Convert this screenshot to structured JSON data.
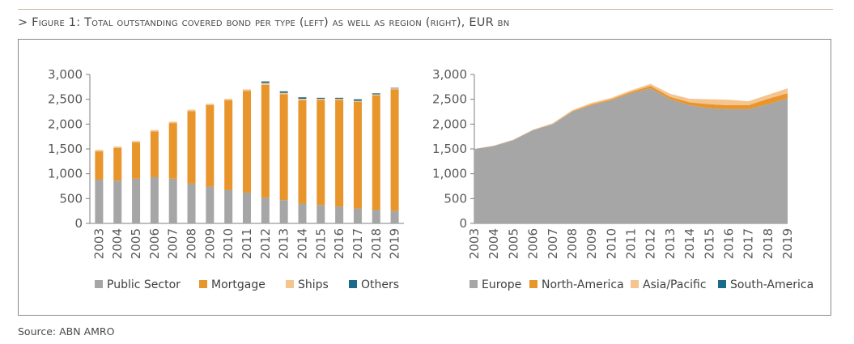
{
  "figure": {
    "title": "> Figure 1: Total outstanding covered bond per type (left) as well as region (right), EUR bn",
    "source": "Source: ABN AMRO"
  },
  "chart_data": [
    {
      "type": "bar",
      "stacked": true,
      "title": "",
      "xlabel": "",
      "ylabel": "",
      "ylim": [
        0,
        3000
      ],
      "yticks": [
        "0",
        "500",
        "1,000",
        "1,500",
        "2,000",
        "2,500",
        "3,000"
      ],
      "grid": false,
      "legend": "bottom",
      "categories": [
        "2003",
        "2004",
        "2005",
        "2006",
        "2007",
        "2008",
        "2009",
        "2010",
        "2011",
        "2012",
        "2013",
        "2014",
        "2015",
        "2016",
        "2017",
        "2018",
        "2019"
      ],
      "series": [
        {
          "name": "Public Sector",
          "color": "#a6a6a6",
          "values": [
            880,
            860,
            900,
            930,
            900,
            800,
            740,
            670,
            620,
            520,
            470,
            400,
            370,
            340,
            300,
            270,
            250
          ]
        },
        {
          "name": "Mortgage",
          "color": "#e8952c",
          "values": [
            570,
            660,
            730,
            920,
            1120,
            1460,
            1640,
            1810,
            2050,
            2270,
            2130,
            2080,
            2120,
            2150,
            2150,
            2310,
            2450
          ]
        },
        {
          "name": "Ships",
          "color": "#f5c48f",
          "values": [
            30,
            30,
            30,
            30,
            30,
            30,
            30,
            30,
            30,
            40,
            30,
            30,
            20,
            20,
            20,
            20,
            20
          ]
        },
        {
          "name": "Others",
          "color": "#1b6a8a",
          "values": [
            0,
            0,
            0,
            0,
            0,
            0,
            0,
            0,
            0,
            30,
            30,
            30,
            20,
            20,
            30,
            20,
            10
          ]
        }
      ]
    },
    {
      "type": "area",
      "stacked": true,
      "title": "",
      "xlabel": "",
      "ylabel": "",
      "ylim": [
        0,
        3000
      ],
      "yticks": [
        "0",
        "500",
        "1,000",
        "1,500",
        "2,000",
        "2,500",
        "3,000"
      ],
      "grid": false,
      "legend": "bottom",
      "x": [
        "2003",
        "2004",
        "2005",
        "2006",
        "2007",
        "2008",
        "2009",
        "2010",
        "2011",
        "2012",
        "2013",
        "2014",
        "2015",
        "2016",
        "2017",
        "2018",
        "2019"
      ],
      "series": [
        {
          "name": "Europe",
          "color": "#a6a6a6",
          "values": [
            1500,
            1560,
            1680,
            1880,
            2000,
            2250,
            2380,
            2480,
            2620,
            2720,
            2500,
            2380,
            2320,
            2300,
            2300,
            2400,
            2520
          ]
        },
        {
          "name": "North-America",
          "color": "#e8952c",
          "values": [
            0,
            0,
            0,
            0,
            0,
            10,
            20,
            20,
            30,
            50,
            50,
            60,
            80,
            80,
            80,
            110,
            100
          ]
        },
        {
          "name": "Asia/Pacific",
          "color": "#f5c48f",
          "values": [
            0,
            10,
            10,
            10,
            20,
            20,
            30,
            30,
            30,
            40,
            60,
            70,
            100,
            110,
            80,
            80,
            100
          ]
        },
        {
          "name": "South-America",
          "color": "#1b6a8a",
          "values": [
            0,
            0,
            0,
            0,
            0,
            0,
            0,
            0,
            0,
            0,
            0,
            0,
            0,
            0,
            0,
            0,
            0
          ]
        }
      ]
    }
  ]
}
